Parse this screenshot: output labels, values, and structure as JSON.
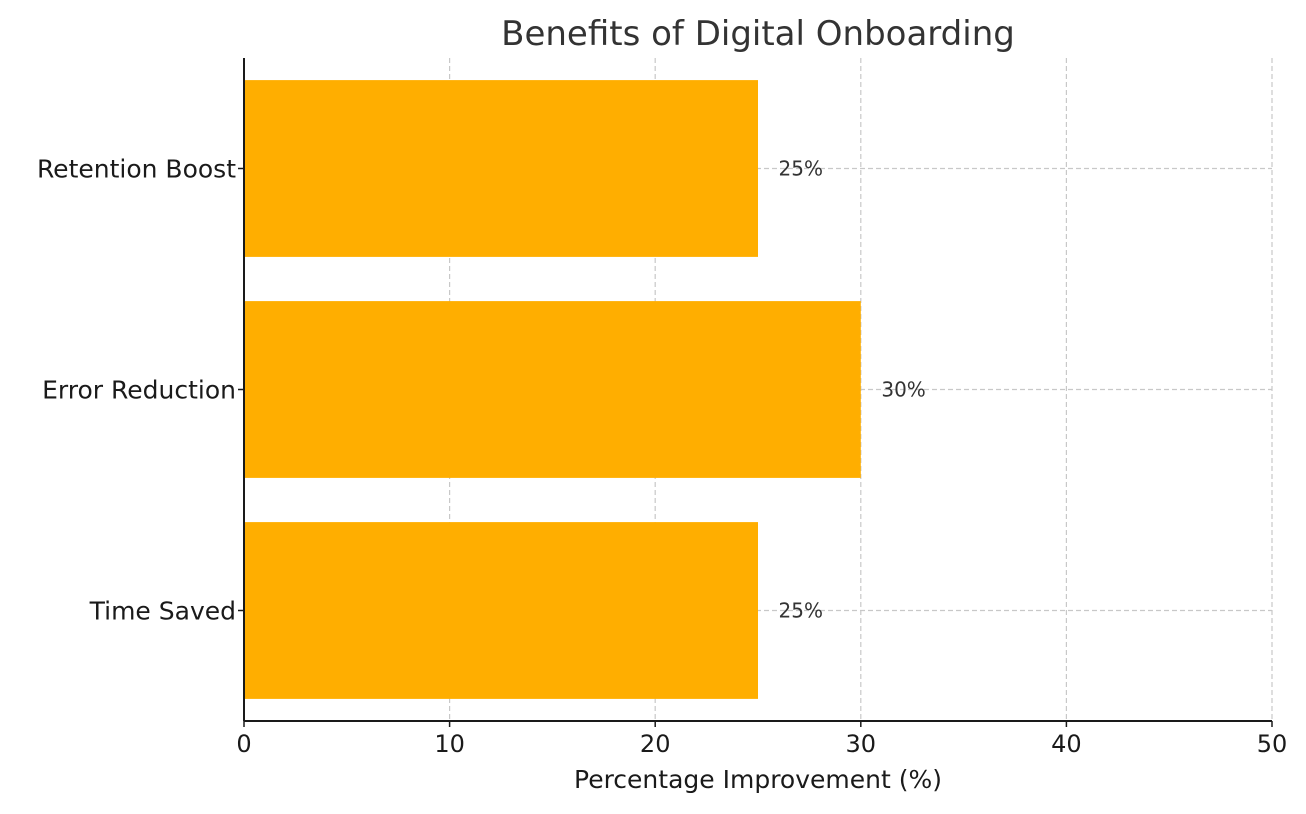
{
  "chart_data": {
    "type": "bar",
    "orientation": "horizontal",
    "title": "Benefits of Digital Onboarding",
    "xlabel": "Percentage Improvement (%)",
    "ylabel": "",
    "categories": [
      "Time Saved",
      "Error Reduction",
      "Retention Boost"
    ],
    "values": [
      25,
      30,
      25
    ],
    "data_labels": [
      "25%",
      "30%",
      "25%"
    ],
    "xlim": [
      0,
      50
    ],
    "xticks": [
      0,
      10,
      20,
      30,
      40,
      50
    ],
    "xtick_labels": [
      "0",
      "10",
      "20",
      "30",
      "40",
      "50"
    ],
    "grid": true,
    "bar_color": "#FFAE00",
    "text_color": "#333333"
  }
}
